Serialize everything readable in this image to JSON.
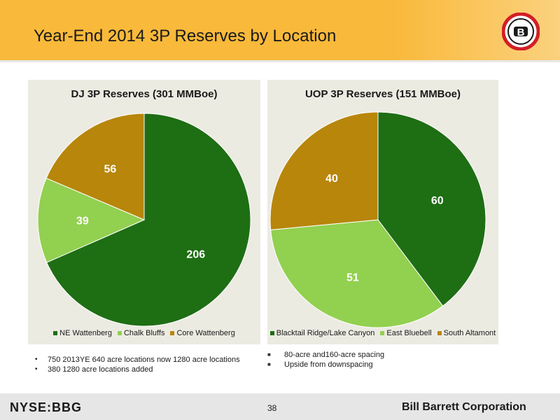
{
  "header": {
    "title": "Year-End 2014 3P Reserves by Location"
  },
  "logo": {
    "letter": "B",
    "ring_color": "#d21f26"
  },
  "chart_data": [
    {
      "type": "pie",
      "title": "DJ 3P Reserves (301 MMBoe)",
      "categories": [
        "NE Wattenberg",
        "Chalk Bluffs",
        "Core Wattenberg"
      ],
      "values": [
        206,
        39,
        56
      ],
      "colors": [
        "#1e6e14",
        "#92d050",
        "#b7860b"
      ],
      "label_colors": [
        "#ffffff",
        "#ffffff",
        "#ffffff"
      ],
      "legend": "bottom"
    },
    {
      "type": "pie",
      "title": "UOP 3P Reserves (151 MMBoe)",
      "categories": [
        "Blacktail Ridge/Lake Canyon",
        "East Bluebell",
        "South Altamont"
      ],
      "values": [
        60,
        51,
        40
      ],
      "colors": [
        "#1e6e14",
        "#92d050",
        "#b7860b"
      ],
      "label_colors": [
        "#ffffff",
        "#ffffff",
        "#ffffff"
      ],
      "legend": "bottom"
    }
  ],
  "notes_left": [
    "750 2013YE 640 acre locations now 1280 acre locations",
    "380 1280 acre locations added"
  ],
  "notes_right": [
    "80-acre and160-acre spacing",
    "Upside from downspacing"
  ],
  "footer": {
    "ticker": "NYSE:BBG",
    "page": "38",
    "company": "Bill Barrett Corporation"
  }
}
